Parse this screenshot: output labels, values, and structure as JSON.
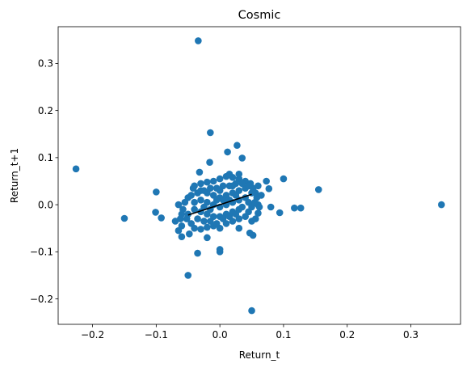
{
  "chart_data": {
    "type": "scatter",
    "title": "Cosmic",
    "xlabel": "Return_t",
    "ylabel": "Return_t+1",
    "xlim": [
      -0.254,
      0.378
    ],
    "ylim": [
      -0.254,
      0.378
    ],
    "xticks": [
      {
        "value": -0.2,
        "label": "−0.2"
      },
      {
        "value": -0.1,
        "label": "−0.1"
      },
      {
        "value": 0.0,
        "label": "0.0"
      },
      {
        "value": 0.1,
        "label": "0.1"
      },
      {
        "value": 0.2,
        "label": "0.2"
      },
      {
        "value": 0.3,
        "label": "0.3"
      }
    ],
    "yticks": [
      {
        "value": -0.2,
        "label": "−0.2"
      },
      {
        "value": -0.1,
        "label": "−0.1"
      },
      {
        "value": 0.0,
        "label": "0.0"
      },
      {
        "value": 0.1,
        "label": "0.1"
      },
      {
        "value": 0.2,
        "label": "0.2"
      },
      {
        "value": 0.3,
        "label": "0.3"
      }
    ],
    "grid": false,
    "point_color": "#1f77b4",
    "line_color": "#000000",
    "points": [
      {
        "x": -0.034,
        "y": 0.348
      },
      {
        "x": -0.015,
        "y": 0.153
      },
      {
        "x": 0.027,
        "y": 0.126
      },
      {
        "x": 0.012,
        "y": 0.112
      },
      {
        "x": 0.035,
        "y": 0.099
      },
      {
        "x": -0.016,
        "y": 0.09
      },
      {
        "x": -0.226,
        "y": 0.076
      },
      {
        "x": -0.032,
        "y": 0.069
      },
      {
        "x": 0.1,
        "y": 0.055
      },
      {
        "x": 0.155,
        "y": 0.032
      },
      {
        "x": -0.1,
        "y": 0.027
      },
      {
        "x": 0.348,
        "y": 0.0
      },
      {
        "x": 0.06,
        "y": 0.0
      },
      {
        "x": 0.077,
        "y": 0.034
      },
      {
        "x": 0.073,
        "y": 0.05
      },
      {
        "x": 0.08,
        "y": -0.005
      },
      {
        "x": 0.094,
        "y": -0.017
      },
      {
        "x": 0.117,
        "y": -0.007
      },
      {
        "x": 0.127,
        "y": -0.007
      },
      {
        "x": -0.092,
        "y": -0.028
      },
      {
        "x": -0.101,
        "y": -0.016
      },
      {
        "x": -0.15,
        "y": -0.029
      },
      {
        "x": -0.07,
        "y": -0.035
      },
      {
        "x": -0.06,
        "y": -0.045
      },
      {
        "x": -0.065,
        "y": -0.055
      },
      {
        "x": -0.06,
        "y": -0.068
      },
      {
        "x": -0.048,
        "y": -0.062
      },
      {
        "x": -0.02,
        "y": -0.07
      },
      {
        "x": 0.03,
        "y": -0.05
      },
      {
        "x": 0.047,
        "y": -0.06
      },
      {
        "x": 0.052,
        "y": -0.065
      },
      {
        "x": 0.05,
        "y": -0.035
      },
      {
        "x": 0.056,
        "y": -0.03
      },
      {
        "x": 0.06,
        "y": -0.018
      },
      {
        "x": 0.0,
        "y": -0.095
      },
      {
        "x": 0.0,
        "y": -0.1
      },
      {
        "x": -0.035,
        "y": -0.103
      },
      {
        "x": -0.05,
        "y": -0.15
      },
      {
        "x": 0.05,
        "y": -0.225
      },
      {
        "x": -0.042,
        "y": 0.035
      },
      {
        "x": -0.05,
        "y": 0.015
      },
      {
        "x": -0.055,
        "y": 0.005
      },
      {
        "x": -0.058,
        "y": -0.01
      },
      {
        "x": -0.06,
        "y": -0.02
      },
      {
        "x": -0.052,
        "y": -0.03
      },
      {
        "x": -0.045,
        "y": -0.04
      },
      {
        "x": -0.04,
        "y": -0.05
      },
      {
        "x": -0.03,
        "y": -0.052
      },
      {
        "x": -0.02,
        "y": -0.048
      },
      {
        "x": -0.01,
        "y": -0.045
      },
      {
        "x": 0.0,
        "y": -0.05
      },
      {
        "x": 0.01,
        "y": -0.04
      },
      {
        "x": 0.02,
        "y": -0.035
      },
      {
        "x": 0.03,
        "y": -0.03
      },
      {
        "x": 0.04,
        "y": -0.025
      },
      {
        "x": 0.045,
        "y": -0.015
      },
      {
        "x": 0.05,
        "y": -0.005
      },
      {
        "x": 0.055,
        "y": 0.005
      },
      {
        "x": 0.058,
        "y": 0.015
      },
      {
        "x": 0.056,
        "y": 0.025
      },
      {
        "x": 0.052,
        "y": 0.035
      },
      {
        "x": 0.048,
        "y": 0.045
      },
      {
        "x": 0.04,
        "y": 0.05
      },
      {
        "x": 0.03,
        "y": 0.055
      },
      {
        "x": 0.02,
        "y": 0.058
      },
      {
        "x": 0.01,
        "y": 0.06
      },
      {
        "x": 0.0,
        "y": 0.055
      },
      {
        "x": -0.01,
        "y": 0.05
      },
      {
        "x": -0.02,
        "y": 0.048
      },
      {
        "x": -0.03,
        "y": 0.045
      },
      {
        "x": -0.04,
        "y": 0.04
      },
      {
        "x": -0.03,
        "y": 0.03
      },
      {
        "x": -0.02,
        "y": 0.025
      },
      {
        "x": -0.01,
        "y": 0.02
      },
      {
        "x": 0.0,
        "y": 0.015
      },
      {
        "x": 0.01,
        "y": 0.02
      },
      {
        "x": 0.02,
        "y": 0.025
      },
      {
        "x": 0.03,
        "y": 0.03
      },
      {
        "x": 0.04,
        "y": 0.035
      },
      {
        "x": -0.03,
        "y": 0.01
      },
      {
        "x": -0.02,
        "y": 0.005
      },
      {
        "x": -0.01,
        "y": 0.0
      },
      {
        "x": 0.0,
        "y": -0.005
      },
      {
        "x": 0.01,
        "y": 0.0
      },
      {
        "x": 0.02,
        "y": 0.005
      },
      {
        "x": 0.03,
        "y": 0.01
      },
      {
        "x": 0.04,
        "y": 0.015
      },
      {
        "x": -0.04,
        "y": -0.01
      },
      {
        "x": -0.03,
        "y": -0.015
      },
      {
        "x": -0.02,
        "y": -0.02
      },
      {
        "x": -0.01,
        "y": -0.025
      },
      {
        "x": 0.0,
        "y": -0.025
      },
      {
        "x": 0.01,
        "y": -0.02
      },
      {
        "x": 0.02,
        "y": -0.015
      },
      {
        "x": 0.03,
        "y": -0.01
      },
      {
        "x": -0.045,
        "y": 0.02
      },
      {
        "x": -0.04,
        "y": 0.005
      },
      {
        "x": -0.035,
        "y": -0.03
      },
      {
        "x": -0.025,
        "y": -0.035
      },
      {
        "x": -0.015,
        "y": -0.035
      },
      {
        "x": -0.005,
        "y": -0.04
      },
      {
        "x": 0.005,
        "y": -0.03
      },
      {
        "x": 0.015,
        "y": -0.025
      },
      {
        "x": 0.025,
        "y": -0.02
      },
      {
        "x": 0.035,
        "y": -0.005
      },
      {
        "x": 0.045,
        "y": 0.005
      },
      {
        "x": 0.05,
        "y": 0.025
      },
      {
        "x": 0.045,
        "y": 0.04
      },
      {
        "x": 0.035,
        "y": 0.045
      },
      {
        "x": 0.025,
        "y": 0.045
      },
      {
        "x": 0.015,
        "y": 0.04
      },
      {
        "x": 0.005,
        "y": 0.04
      },
      {
        "x": -0.005,
        "y": 0.035
      },
      {
        "x": -0.015,
        "y": 0.035
      },
      {
        "x": -0.025,
        "y": 0.03
      },
      {
        "x": -0.035,
        "y": 0.025
      },
      {
        "x": 0.005,
        "y": 0.01
      },
      {
        "x": -0.005,
        "y": 0.01
      },
      {
        "x": 0.015,
        "y": 0.01
      },
      {
        "x": 0.025,
        "y": 0.02
      },
      {
        "x": -0.015,
        "y": -0.01
      },
      {
        "x": -0.025,
        "y": -0.005
      },
      {
        "x": 0.0,
        "y": 0.03
      },
      {
        "x": 0.02,
        "y": 0.04
      },
      {
        "x": -0.05,
        "y": -0.02
      },
      {
        "x": 0.06,
        "y": 0.04
      },
      {
        "x": 0.065,
        "y": 0.02
      },
      {
        "x": 0.062,
        "y": -0.005
      },
      {
        "x": -0.065,
        "y": 0.0
      },
      {
        "x": -0.062,
        "y": -0.03
      },
      {
        "x": 0.015,
        "y": 0.065
      },
      {
        "x": 0.03,
        "y": 0.065
      }
    ],
    "regression_line": {
      "x": [
        -0.05,
        0.05
      ],
      "y": [
        -0.022,
        0.022
      ]
    }
  }
}
